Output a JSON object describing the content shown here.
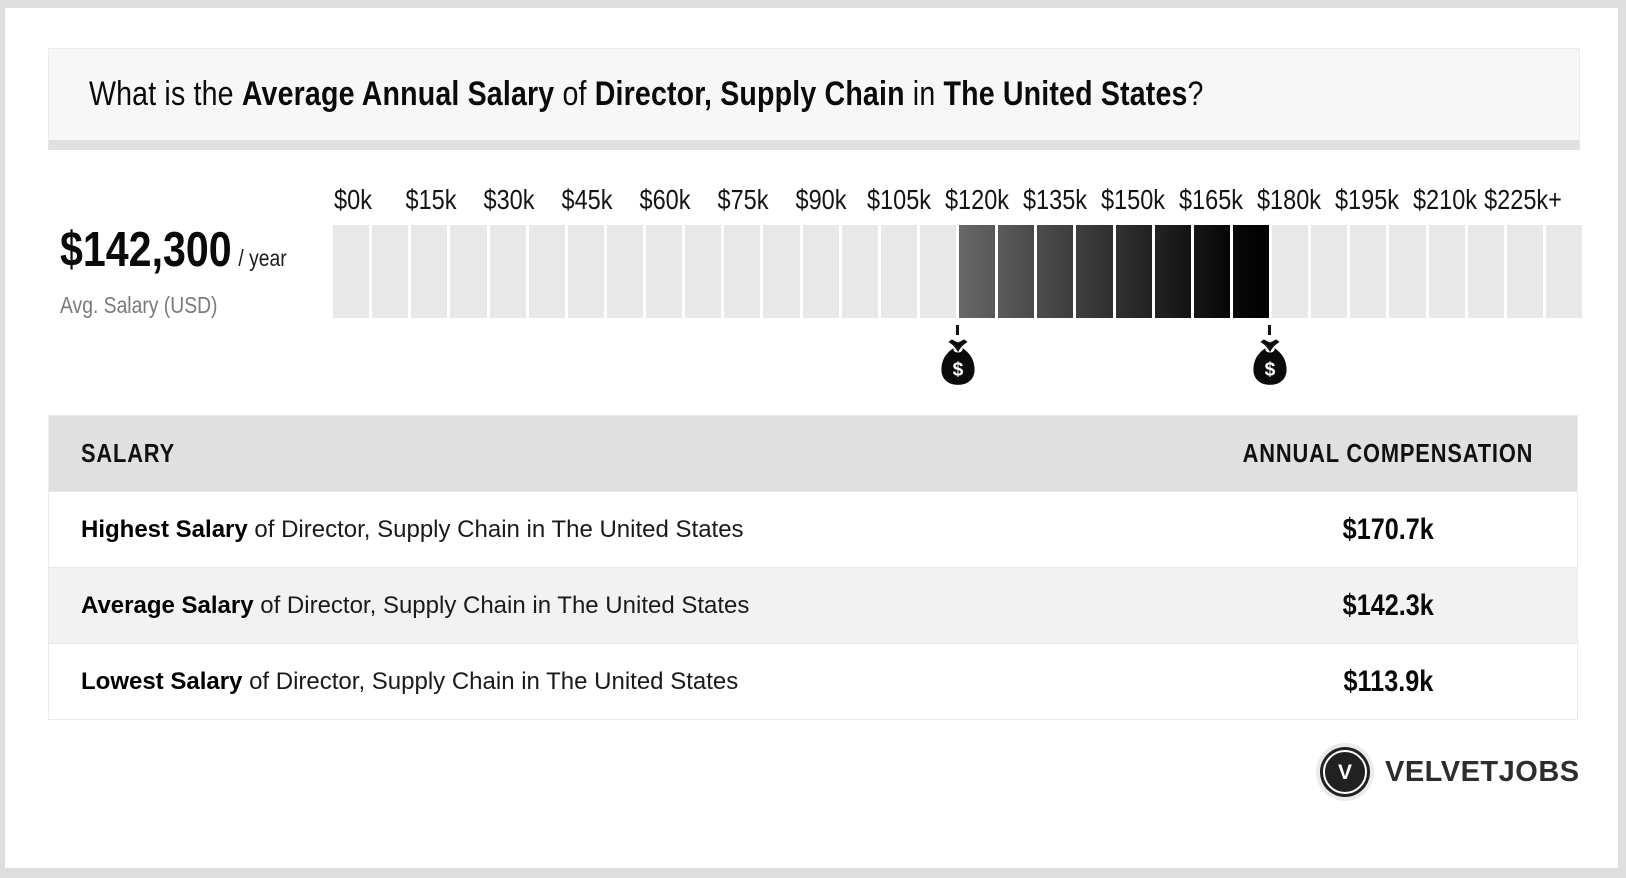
{
  "header": {
    "p1": "What is the ",
    "p2": "Average Annual Salary",
    "p3": " of ",
    "p4": "Director, Supply Chain",
    "p5": " in ",
    "p6": "The United States",
    "p7": "?"
  },
  "stat": {
    "amount": "$142,300",
    "per": "/ year",
    "caption": "Avg. Salary (USD)"
  },
  "chart_data": {
    "type": "bar",
    "subtype": "salary-range-gauge",
    "title": "Average Annual Salary of Director, Supply Chain in The United States",
    "x_tick_labels": [
      "$0k",
      "$15k",
      "$30k",
      "$45k",
      "$60k",
      "$75k",
      "$90k",
      "$105k",
      "$120k",
      "$135k",
      "$150k",
      "$165k",
      "$180k",
      "$195k",
      "$210k",
      "$225k+"
    ],
    "x_tick_values_k": [
      0,
      15,
      30,
      45,
      60,
      75,
      90,
      105,
      120,
      135,
      150,
      165,
      180,
      195,
      210,
      225
    ],
    "segments_total": 32,
    "segment_value_k": 7.5,
    "xlim_k": [
      -3.75,
      236.25
    ],
    "average_salary_usd": 142300,
    "average_k": 142.3,
    "range_low_k": 113.9,
    "range_high_k": 170.7,
    "legend_position": "none",
    "grid": false,
    "colors": {
      "segment_base": "#e8e8e8",
      "highlight_start": "#606060",
      "highlight_end": "#000000",
      "header_bg": "#e0e0e0",
      "title_box_bg": "#f7f7f7",
      "page_frame": "#dedede"
    }
  },
  "table": {
    "columns": [
      "SALARY",
      "ANNUAL COMPENSATION"
    ],
    "rows": [
      {
        "bold": "Highest Salary",
        "rest": " of Director, Supply Chain in The United States",
        "value": "$170.7k"
      },
      {
        "bold": "Average Salary",
        "rest": " of Director, Supply Chain in The United States",
        "value": "$142.3k"
      },
      {
        "bold": "Lowest Salary",
        "rest": " of Director, Supply Chain in The United States",
        "value": "$113.9k"
      }
    ]
  },
  "brand": {
    "name": "VELVETJOBS",
    "monogram": "V",
    "icon": "money-bag-icon"
  }
}
